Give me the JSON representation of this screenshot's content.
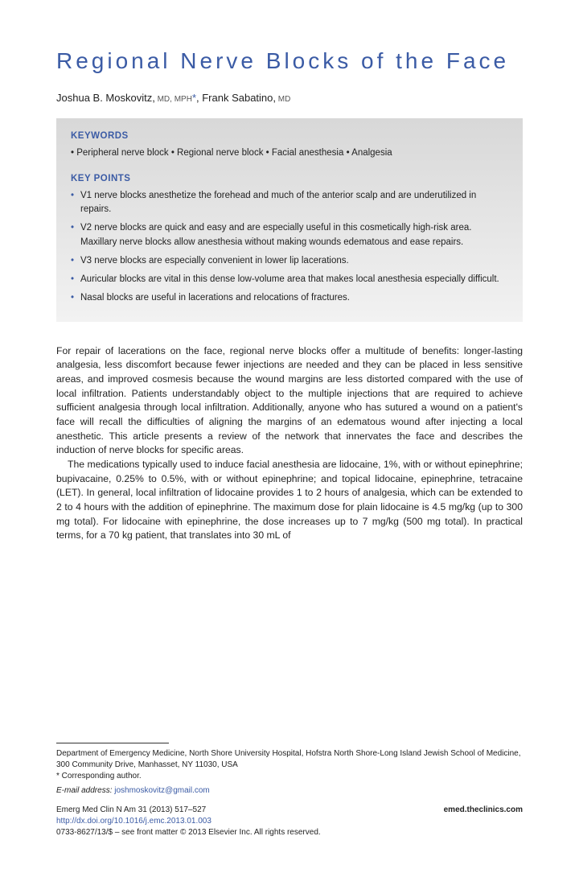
{
  "title": "Regional Nerve Blocks of the Face",
  "authors": {
    "a1_name": "Joshua B. Moskovitz,",
    "a1_deg": " MD, MPH",
    "asterisk": "*",
    "sep": ", ",
    "a2_name": "Frank Sabatino,",
    "a2_deg": " MD"
  },
  "box": {
    "kw_heading": "KEYWORDS",
    "keywords": "• Peripheral nerve block • Regional nerve block • Facial anesthesia • Analgesia",
    "kp_heading": "KEY POINTS",
    "points": [
      "V1 nerve blocks anesthetize the forehead and much of the anterior scalp and are underutilized in repairs.",
      "V2 nerve blocks are quick and easy and are especially useful in this cosmetically high-risk area. Maxillary nerve blocks allow anesthesia without making wounds edematous and ease repairs.",
      "V3 nerve blocks are especially convenient in lower lip lacerations.",
      "Auricular blocks are vital in this dense low-volume area that makes local anesthesia especially difficult.",
      "Nasal blocks are useful in lacerations and relocations of fractures."
    ]
  },
  "body": {
    "p1": "For repair of lacerations on the face, regional nerve blocks offer a multitude of benefits: longer-lasting analgesia, less discomfort because fewer injections are needed and they can be placed in less sensitive areas, and improved cosmesis because the wound margins are less distorted compared with the use of local infiltration. Patients understandably object to the multiple injections that are required to achieve sufficient analgesia through local infiltration. Additionally, anyone who has sutured a wound on a patient's face will recall the difficulties of aligning the margins of an edematous wound after injecting a local anesthetic. This article presents a review of the network that innervates the face and describes the induction of nerve blocks for specific areas.",
    "p2": "The medications typically used to induce facial anesthesia are lidocaine, 1%, with or without epinephrine; bupivacaine, 0.25% to 0.5%, with or without epinephrine; and topical lidocaine, epinephrine, tetracaine (LET). In general, local infiltration of lidocaine provides 1 to 2 hours of analgesia, which can be extended to 2 to 4 hours with the addition of epinephrine. The maximum dose for plain lidocaine is 4.5 mg/kg (up to 300 mg total). For lidocaine with epinephrine, the dose increases up to 7 mg/kg (500 mg total). In practical terms, for a 70 kg patient, that translates into 30 mL of"
  },
  "footer": {
    "affiliation": "Department of Emergency Medicine, North Shore University Hospital, Hofstra North Shore-Long Island Jewish School of Medicine, 300 Community Drive, Manhasset, NY 11030, USA",
    "corr": "* Corresponding author.",
    "email_label": "E-mail address: ",
    "email": "joshmoskovitz@gmail.com",
    "journal": "Emerg Med Clin N Am 31 (2013) 517–527",
    "doi": "http://dx.doi.org/10.1016/j.emc.2013.01.003",
    "site": "emed.theclinics.com",
    "copyright": "0733-8627/13/$ – see front matter © 2013 Elsevier Inc. All rights reserved."
  },
  "colors": {
    "accent": "#3b5ba5",
    "box_grad_top": "#d8d8d8",
    "box_grad_bot": "#f2f2f2",
    "text": "#222222",
    "bg": "#ffffff"
  },
  "typography": {
    "title_fontsize": 28,
    "title_letterspacing": 4,
    "body_fontsize": 12.2,
    "box_fontsize": 11.5,
    "footer_fontsize": 10
  }
}
